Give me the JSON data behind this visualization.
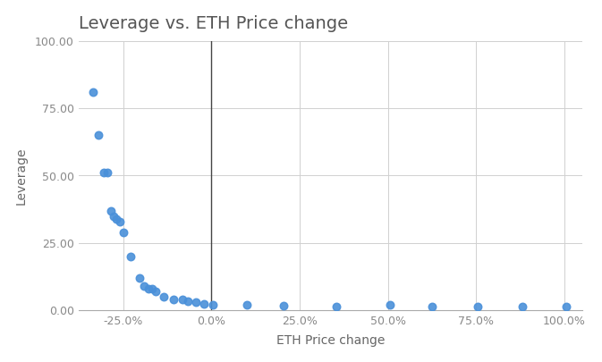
{
  "title": "Leverage vs. ETH Price change",
  "xlabel": "ETH Price change",
  "ylabel": "Leverage",
  "dot_color": "#4a90d9",
  "background_color": "#ffffff",
  "grid_color": "#d0d0d0",
  "vline_x": 0.0,
  "vline_color": "#444444",
  "ylim": [
    0,
    100
  ],
  "xlim": [
    -0.375,
    1.05
  ],
  "x_ticks": [
    -0.25,
    0.0,
    0.25,
    0.5,
    0.75,
    1.0
  ],
  "y_ticks": [
    0.0,
    25.0,
    50.0,
    75.0,
    100.0
  ],
  "x_data": [
    -0.335,
    -0.32,
    -0.305,
    -0.295,
    -0.285,
    -0.278,
    -0.27,
    -0.26,
    -0.25,
    -0.228,
    -0.205,
    -0.19,
    -0.178,
    -0.168,
    -0.158,
    -0.135,
    -0.108,
    -0.082,
    -0.067,
    -0.043,
    -0.022,
    0.003,
    0.1,
    0.205,
    0.355,
    0.505,
    0.625,
    0.755,
    0.88,
    1.005
  ],
  "y_data": [
    81,
    65,
    51,
    51,
    37,
    35,
    34,
    33,
    29,
    20,
    12,
    9,
    8,
    8,
    7,
    5,
    4,
    4,
    3.5,
    3,
    2.5,
    2,
    2,
    1.8,
    1.5,
    2,
    1.5,
    1.5,
    1.5,
    1.5
  ],
  "title_fontsize": 14,
  "label_fontsize": 10,
  "tick_fontsize": 9,
  "title_color": "#555555",
  "axis_label_color": "#666666",
  "tick_color": "#888888"
}
